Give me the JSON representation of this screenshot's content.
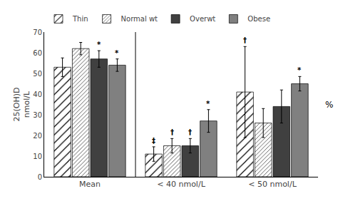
{
  "chart_data": {
    "type": "bar",
    "categories": [
      "Mean",
      "< 40 nmol/L",
      "< 50 nmol/L"
    ],
    "ylabel": [
      "25(OH)D",
      "nmol/L"
    ],
    "ylabel_right": "%",
    "series": [
      {
        "name": "Thin",
        "color": "white",
        "values": [
          53.0,
          11.0,
          41.0
        ],
        "errors": [
          4.5,
          3.5,
          22.0
        ],
        "marks": [
          null,
          "‡",
          "†"
        ]
      },
      {
        "name": "Normal wt",
        "color": "white",
        "values": [
          62.0,
          15.0,
          26.0
        ],
        "errors": [
          3.0,
          3.5,
          7.0
        ],
        "marks": [
          null,
          "†",
          null
        ]
      },
      {
        "name": "Overwt",
        "color": "#404040",
        "values": [
          57.0,
          15.0,
          34.0
        ],
        "errors": [
          4.0,
          3.5,
          8.0
        ],
        "marks": [
          "*",
          "†",
          null
        ]
      },
      {
        "name": "Obese",
        "color": "#808080",
        "values": [
          54.0,
          27.0,
          45.0
        ],
        "errors": [
          3.0,
          5.5,
          3.5
        ],
        "marks": [
          "*",
          "*",
          "*"
        ]
      }
    ],
    "ylim": [
      0,
      70
    ],
    "yticks": [
      0,
      10,
      20,
      30,
      40,
      50,
      60,
      70
    ],
    "grid": false,
    "legend": "top"
  }
}
